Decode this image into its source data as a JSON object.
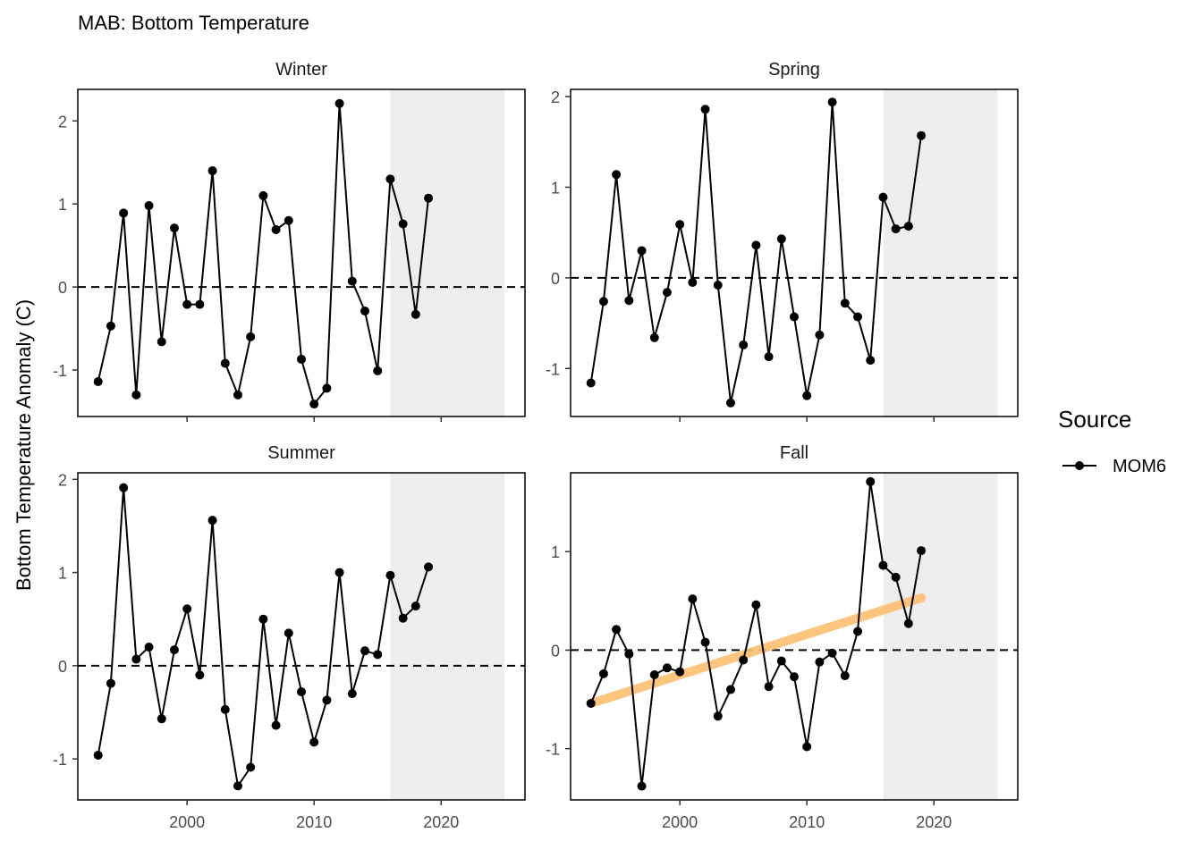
{
  "chart_data": {
    "type": "line",
    "title": "MAB: Bottom Temperature",
    "ylabel": "Bottom Temperature Anomaly (C)",
    "xlabel": "",
    "legend": {
      "title": "Source",
      "entries": [
        "MOM6"
      ],
      "placement": "right"
    },
    "x_ticks": [
      2000,
      2010,
      2020
    ],
    "shaded_region": [
      2016,
      2025
    ],
    "grid": false,
    "colors": {
      "line": "#000000",
      "trend": "#FDBF6F",
      "shade": "#EEEEEE",
      "reference": "#000000"
    },
    "panels": [
      {
        "name": "Winter",
        "xlim": [
          1991.4,
          2026.6
        ],
        "ylim": [
          -1.56,
          2.38
        ],
        "y_ticks": [
          -1,
          0,
          1,
          2
        ],
        "x": [
          1993,
          1994,
          1995,
          1996,
          1997,
          1998,
          1999,
          2000,
          2001,
          2002,
          2003,
          2004,
          2005,
          2006,
          2007,
          2008,
          2009,
          2010,
          2011,
          2012,
          2013,
          2014,
          2015,
          2016,
          2017,
          2018,
          2019
        ],
        "series": [
          {
            "name": "MOM6",
            "values": [
              -1.14,
              -0.47,
              0.89,
              -1.3,
              0.98,
              -0.66,
              0.71,
              -0.21,
              -0.21,
              1.4,
              -0.92,
              -1.3,
              -0.6,
              1.1,
              0.69,
              0.8,
              -0.87,
              -1.41,
              -1.22,
              2.21,
              0.07,
              -0.29,
              -1.01,
              1.3,
              0.76,
              -0.33,
              1.07
            ]
          }
        ]
      },
      {
        "name": "Spring",
        "xlim": [
          1991.4,
          2026.6
        ],
        "ylim": [
          -1.53,
          2.08
        ],
        "y_ticks": [
          -1,
          0,
          1,
          2
        ],
        "x": [
          1993,
          1994,
          1995,
          1996,
          1997,
          1998,
          1999,
          2000,
          2001,
          2002,
          2003,
          2004,
          2005,
          2006,
          2007,
          2008,
          2009,
          2010,
          2011,
          2012,
          2013,
          2014,
          2015,
          2016,
          2017,
          2018,
          2019
        ],
        "series": [
          {
            "name": "MOM6",
            "values": [
              -1.16,
              -0.26,
              1.14,
              -0.25,
              0.3,
              -0.66,
              -0.16,
              0.59,
              -0.05,
              1.86,
              -0.08,
              -1.38,
              -0.74,
              0.36,
              -0.87,
              0.43,
              -0.43,
              -1.3,
              -0.63,
              1.94,
              -0.28,
              -0.43,
              -0.91,
              0.89,
              0.54,
              0.57,
              1.57
            ]
          }
        ]
      },
      {
        "name": "Summer",
        "xlim": [
          1991.4,
          2026.6
        ],
        "ylim": [
          -1.44,
          2.07
        ],
        "y_ticks": [
          -1,
          0,
          1,
          2
        ],
        "x": [
          1993,
          1994,
          1995,
          1996,
          1997,
          1998,
          1999,
          2000,
          2001,
          2002,
          2003,
          2004,
          2005,
          2006,
          2007,
          2008,
          2009,
          2010,
          2011,
          2012,
          2013,
          2014,
          2015,
          2016,
          2017,
          2018,
          2019
        ],
        "series": [
          {
            "name": "MOM6",
            "values": [
              -0.96,
              -0.19,
              1.91,
              0.07,
              0.2,
              -0.57,
              0.17,
              0.61,
              -0.1,
              1.56,
              -0.47,
              -1.29,
              -1.09,
              0.5,
              -0.64,
              0.35,
              -0.28,
              -0.82,
              -0.37,
              1.0,
              -0.3,
              0.16,
              0.12,
              0.97,
              0.51,
              0.64,
              1.06
            ]
          }
        ]
      },
      {
        "name": "Fall",
        "xlim": [
          1991.4,
          2026.6
        ],
        "ylim": [
          -1.52,
          1.8
        ],
        "y_ticks": [
          -1,
          0,
          1
        ],
        "x": [
          1993,
          1994,
          1995,
          1996,
          1997,
          1998,
          1999,
          2000,
          2001,
          2002,
          2003,
          2004,
          2005,
          2006,
          2007,
          2008,
          2009,
          2010,
          2011,
          2012,
          2013,
          2014,
          2015,
          2016,
          2017,
          2018,
          2019
        ],
        "series": [
          {
            "name": "MOM6",
            "values": [
              -0.54,
              -0.24,
              0.21,
              -0.04,
              -1.38,
              -0.25,
              -0.18,
              -0.22,
              0.52,
              0.08,
              -0.67,
              -0.4,
              -0.1,
              0.46,
              -0.37,
              -0.11,
              -0.27,
              -0.98,
              -0.12,
              -0.03,
              -0.26,
              0.19,
              1.71,
              0.86,
              0.74,
              0.27,
              1.01
            ]
          }
        ],
        "trend": {
          "x": [
            1993,
            2019
          ],
          "y": [
            -0.54,
            0.53
          ]
        }
      }
    ]
  }
}
